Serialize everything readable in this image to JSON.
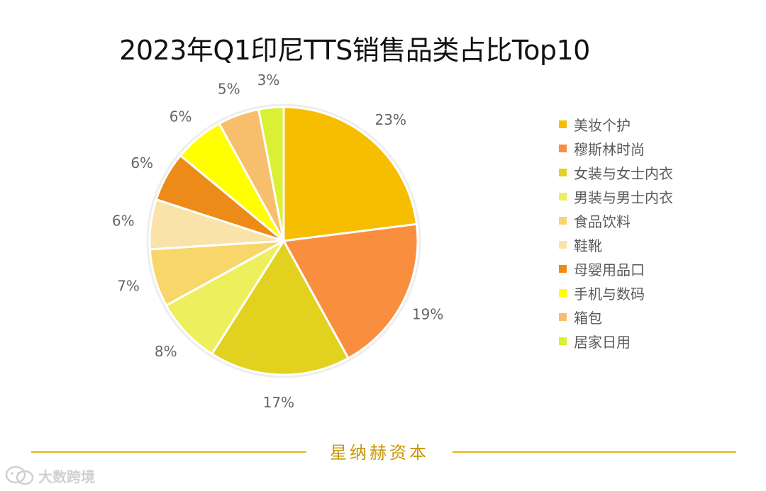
{
  "footer": {
    "brand": "星纳赫资本"
  },
  "watermark": {
    "text": "大数跨境",
    "icon": "wechat-logo-icon"
  },
  "chart_data": {
    "type": "pie",
    "title": "2023年Q1印尼TTS销售品类占比Top10",
    "legend_position": "right",
    "categories": [
      "美妆个护",
      "穆斯林时尚",
      "女装与女士内衣",
      "男装与男士内衣",
      "食品饮料",
      "鞋靴",
      "母婴用品口",
      "手机与数码",
      "箱包",
      "居家日用"
    ],
    "values": [
      23,
      19,
      17,
      8,
      7,
      6,
      6,
      6,
      5,
      3
    ],
    "labels": [
      "23%",
      "19%",
      "17%",
      "8%",
      "7%",
      "6%",
      "6%",
      "6%",
      "5%",
      "3%"
    ],
    "colors": [
      "#f7bd00",
      "#f98e3e",
      "#e2d21f",
      "#edef5c",
      "#f8d66a",
      "#fae3a9",
      "#ec8b18",
      "#ffff00",
      "#f7be6e",
      "#d9f033"
    ]
  }
}
